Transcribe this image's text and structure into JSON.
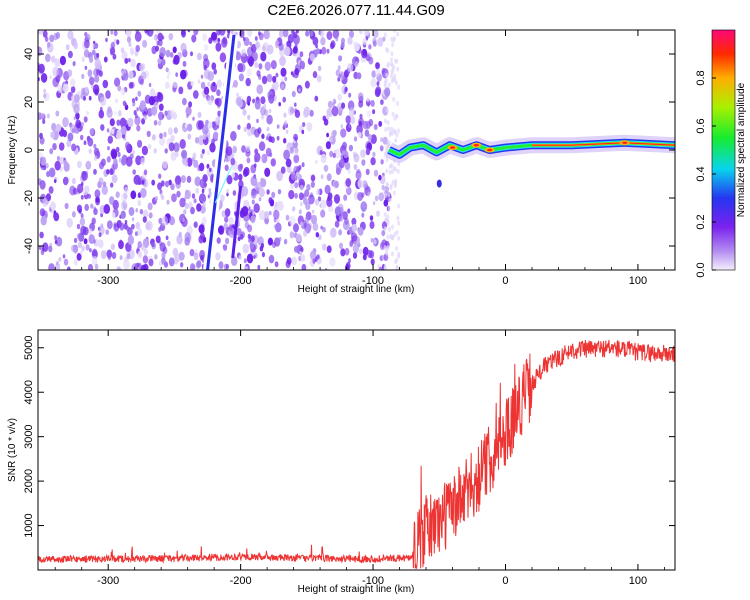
{
  "title": "C2E6.2026.077.11.44.G09",
  "chart_data": [
    {
      "type": "heatmap",
      "xlabel": "Height of straight line (km)",
      "ylabel": "Frequency (Hz)",
      "xlim": [
        -353,
        128
      ],
      "ylim": [
        -50,
        50
      ],
      "xticks": [
        -300,
        -200,
        -100,
        0,
        100
      ],
      "yticks": [
        -40,
        -20,
        0,
        20,
        40
      ],
      "xtick_labels": [
        "-300",
        "-200",
        "-100",
        "0",
        "100"
      ],
      "ytick_labels": [
        "-40",
        "-20",
        "0",
        "20",
        "40"
      ],
      "colorbar": {
        "label": "Normalized spectral amplitude",
        "range": [
          0,
          1
        ],
        "ticks": [
          0,
          0.2,
          0.4,
          0.6,
          0.8
        ],
        "tick_labels": [
          "0.0",
          "0.2",
          "0.4",
          "0.6",
          "0.8"
        ]
      },
      "noise_region_x": [
        -353,
        -88
      ],
      "streak": {
        "x_start": -225,
        "y_start": -50,
        "x_end": -205,
        "y_end": 48
      },
      "ridge": [
        {
          "x": -88,
          "y": 0
        },
        {
          "x": -80,
          "y": -2
        },
        {
          "x": -72,
          "y": 1
        },
        {
          "x": -62,
          "y": 2
        },
        {
          "x": -52,
          "y": -1
        },
        {
          "x": -42,
          "y": 2
        },
        {
          "x": -32,
          "y": 0
        },
        {
          "x": -22,
          "y": 2
        },
        {
          "x": -12,
          "y": 0
        },
        {
          "x": 0,
          "y": 1
        },
        {
          "x": 20,
          "y": 2
        },
        {
          "x": 50,
          "y": 2
        },
        {
          "x": 90,
          "y": 3
        },
        {
          "x": 128,
          "y": 2
        }
      ]
    },
    {
      "type": "line",
      "xlabel": "Height of straight line (km)",
      "ylabel": "SNR (10 * v/v)",
      "xlim": [
        -353,
        128
      ],
      "ylim": [
        0,
        5400
      ],
      "xticks": [
        -300,
        -200,
        -100,
        0,
        100
      ],
      "yticks": [
        1000,
        2000,
        3000,
        4000,
        5000
      ],
      "xtick_labels": [
        "-300",
        "-200",
        "-100",
        "0",
        "100"
      ],
      "ytick_labels": [
        "1000",
        "2000",
        "3000",
        "4000",
        "5000"
      ],
      "series": [
        {
          "name": "SNR",
          "color": "#ee3333",
          "x": [
            -353,
            -300,
            -250,
            -200,
            -150,
            -100,
            -70,
            -60,
            -50,
            -40,
            -30,
            -20,
            -10,
            0,
            10,
            20,
            30,
            50,
            80,
            100,
            128
          ],
          "y": [
            240,
            250,
            260,
            300,
            260,
            250,
            280,
            900,
            1100,
            1400,
            1700,
            2100,
            2600,
            3100,
            3700,
            4200,
            4600,
            4950,
            5000,
            4900,
            4850
          ]
        }
      ]
    }
  ]
}
